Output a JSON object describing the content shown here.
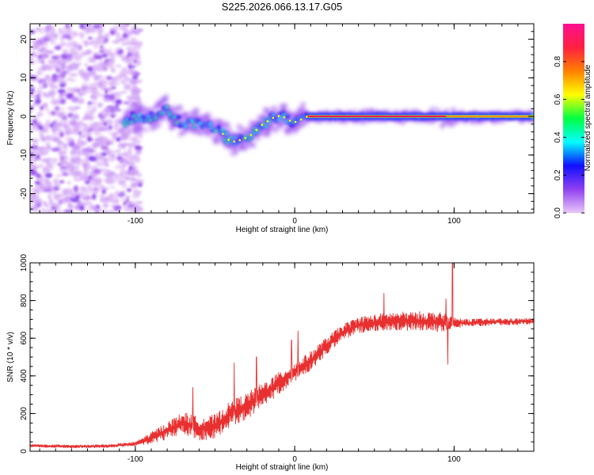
{
  "title": "S225.2026.066.13.17.G05",
  "chart_data": [
    {
      "type": "heatmap",
      "name": "spectrogram",
      "xlabel": "Height of straight line (km)",
      "ylabel": "Frequency (Hz)",
      "xlim": [
        -166,
        150
      ],
      "ylim": [
        -25,
        24
      ],
      "xticks": [
        -100,
        0,
        100
      ],
      "yticks": [
        -20,
        -10,
        0,
        10,
        20
      ],
      "colorbar": {
        "label": "Normalized spectral amplitude",
        "range": [
          0,
          1
        ],
        "ticks": [
          "0.0",
          "0.2",
          "0.4",
          "0.6",
          "0.8"
        ],
        "colors": [
          "#e8c8f8",
          "#9040f0",
          "#1010ff",
          "#00ffff",
          "#00ff40",
          "#ffff00",
          "#ff8000",
          "#ff2040",
          "#ff1090"
        ]
      },
      "noise_region": {
        "x_range": [
          -166,
          -97
        ],
        "y_range": [
          -25,
          24
        ]
      },
      "ridge": [
        {
          "x": -107,
          "f": -1.5
        },
        {
          "x": -100,
          "f": 0
        },
        {
          "x": -92,
          "f": -0.2
        },
        {
          "x": -86,
          "f": -0.5
        },
        {
          "x": -80,
          "f": 2.0
        },
        {
          "x": -76,
          "f": -0.5
        },
        {
          "x": -72,
          "f": -1.5
        },
        {
          "x": -65,
          "f": -2.0
        },
        {
          "x": -60,
          "f": -1.8
        },
        {
          "x": -55,
          "f": -2.5
        },
        {
          "x": -50,
          "f": -3.2
        },
        {
          "x": -45,
          "f": -4.5
        },
        {
          "x": -42,
          "f": -6.0
        },
        {
          "x": -38,
          "f": -6.5
        },
        {
          "x": -33,
          "f": -6.0
        },
        {
          "x": -28,
          "f": -5.0
        },
        {
          "x": -24,
          "f": -3.5
        },
        {
          "x": -20,
          "f": -2.0
        },
        {
          "x": -16,
          "f": -1.0
        },
        {
          "x": -12,
          "f": 0
        },
        {
          "x": -8,
          "f": 0.2
        },
        {
          "x": -4,
          "f": -1.0
        },
        {
          "x": 0,
          "f": -1.5
        },
        {
          "x": 4,
          "f": -0.8
        },
        {
          "x": 8,
          "f": 0
        },
        {
          "x": 20,
          "f": 0
        },
        {
          "x": 50,
          "f": 0
        },
        {
          "x": 80,
          "f": 0
        },
        {
          "x": 100,
          "f": 0
        },
        {
          "x": 130,
          "f": 0
        },
        {
          "x": 150,
          "f": 0
        }
      ],
      "core": {
        "x_range": [
          8,
          150
        ],
        "f": 0
      }
    },
    {
      "type": "line",
      "name": "snr",
      "xlabel": "Height of straight line (km)",
      "ylabel": "SNR (10 * v/v)",
      "xlim": [
        -166,
        150
      ],
      "ylim": [
        0,
        1000
      ],
      "xticks": [
        -100,
        0,
        100
      ],
      "yticks": [
        0,
        200,
        400,
        600,
        800,
        1000
      ],
      "color": "#e83030",
      "trend": [
        {
          "x": -166,
          "y": 30
        },
        {
          "x": -140,
          "y": 25
        },
        {
          "x": -115,
          "y": 28
        },
        {
          "x": -100,
          "y": 40
        },
        {
          "x": -90,
          "y": 70
        },
        {
          "x": -80,
          "y": 110
        },
        {
          "x": -70,
          "y": 150
        },
        {
          "x": -60,
          "y": 120
        },
        {
          "x": -50,
          "y": 130
        },
        {
          "x": -40,
          "y": 200
        },
        {
          "x": -30,
          "y": 240
        },
        {
          "x": -20,
          "y": 300
        },
        {
          "x": -10,
          "y": 360
        },
        {
          "x": 0,
          "y": 420
        },
        {
          "x": 10,
          "y": 480
        },
        {
          "x": 20,
          "y": 560
        },
        {
          "x": 30,
          "y": 630
        },
        {
          "x": 40,
          "y": 670
        },
        {
          "x": 60,
          "y": 690
        },
        {
          "x": 80,
          "y": 690
        },
        {
          "x": 100,
          "y": 680
        },
        {
          "x": 120,
          "y": 685
        },
        {
          "x": 150,
          "y": 690
        }
      ],
      "spikes": [
        {
          "x": -64,
          "y": 340
        },
        {
          "x": -38,
          "y": 470
        },
        {
          "x": -24,
          "y": 500
        },
        {
          "x": -2,
          "y": 590
        },
        {
          "x": 2,
          "y": 640
        },
        {
          "x": 56,
          "y": 840
        },
        {
          "x": 95,
          "y": 810
        },
        {
          "x": 99,
          "y": 1030
        },
        {
          "x": 96,
          "y": 460
        }
      ],
      "noise_amplitude": [
        {
          "x": -166,
          "a": 15
        },
        {
          "x": -100,
          "a": 20
        },
        {
          "x": -90,
          "a": 60
        },
        {
          "x": -70,
          "a": 110
        },
        {
          "x": -50,
          "a": 120
        },
        {
          "x": -30,
          "a": 130
        },
        {
          "x": 0,
          "a": 100
        },
        {
          "x": 30,
          "a": 80
        },
        {
          "x": 60,
          "a": 90
        },
        {
          "x": 90,
          "a": 100
        },
        {
          "x": 105,
          "a": 40
        },
        {
          "x": 150,
          "a": 30
        }
      ]
    }
  ]
}
